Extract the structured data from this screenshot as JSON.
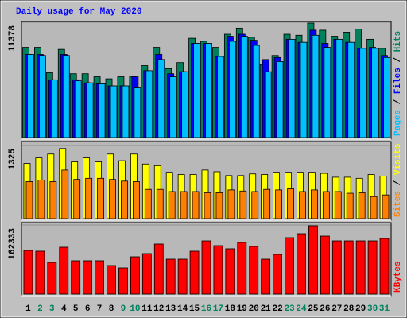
{
  "chart_data": {
    "type": "bar",
    "title": "Daily usage for May 2020",
    "categories": [
      "1",
      "2",
      "3",
      "4",
      "5",
      "6",
      "7",
      "8",
      "9",
      "10",
      "11",
      "12",
      "13",
      "14",
      "15",
      "16",
      "17",
      "18",
      "19",
      "20",
      "21",
      "22",
      "23",
      "24",
      "25",
      "26",
      "27",
      "28",
      "29",
      "30",
      "31"
    ],
    "category_colors": [
      "#000000",
      "#00805c",
      "#00805c",
      "#000000",
      "#000000",
      "#000000",
      "#000000",
      "#000000",
      "#00805c",
      "#00805c",
      "#000000",
      "#000000",
      "#000000",
      "#000000",
      "#000000",
      "#00805c",
      "#00805c",
      "#000000",
      "#000000",
      "#000000",
      "#000000",
      "#000000",
      "#00805c",
      "#00805c",
      "#000000",
      "#000000",
      "#000000",
      "#000000",
      "#000000",
      "#00805c",
      "#00805c"
    ],
    "legend_separator": " / ",
    "panels": [
      {
        "ylim": [
          0,
          11378
        ],
        "yticks": [
          11378
        ],
        "series": [
          {
            "name": "Hits",
            "color": "#00805c",
            "values": [
              8900,
              8900,
              6400,
              8700,
              6300,
              6300,
              6000,
              5800,
              6000,
              6000,
              7100,
              8900,
              6800,
              7400,
              9800,
              9500,
              8900,
              10200,
              10800,
              9900,
              7200,
              8100,
              10200,
              10100,
              11300,
              10600,
              10000,
              10400,
              10700,
              9700,
              8800
            ]
          },
          {
            "name": "Files",
            "color": "#0000ff",
            "values": [
              8200,
              8200,
              5700,
              8200,
              5700,
              5400,
              5300,
              5100,
              5100,
              6000,
              6600,
              8200,
              6300,
              6500,
              9300,
              9300,
              8000,
              10000,
              10200,
              9600,
              7700,
              7900,
              9700,
              9400,
              10600,
              9300,
              9700,
              9400,
              8800,
              8900,
              8100
            ]
          },
          {
            "name": "Pages",
            "color": "#00c0ff",
            "values": [
              8200,
              8100,
              5700,
              8100,
              5600,
              5400,
              5300,
              5100,
              5100,
              4900,
              6600,
              7700,
              6000,
              6500,
              9300,
              9300,
              8000,
              9500,
              10000,
              9100,
              6500,
              7500,
              9700,
              9400,
              10100,
              8900,
              9700,
              9400,
              8800,
              8800,
              7900
            ]
          }
        ]
      },
      {
        "ylim": [
          0,
          1325
        ],
        "yticks": [
          1325
        ],
        "series": [
          {
            "name": "Visits",
            "color": "#ffff00",
            "values": [
              1000,
              1100,
              1170,
              1270,
              1030,
              1100,
              1030,
              1170,
              1050,
              1170,
              990,
              960,
              840,
              800,
              800,
              880,
              850,
              780,
              780,
              810,
              800,
              840,
              840,
              840,
              840,
              820,
              750,
              750,
              730,
              800,
              770
            ]
          },
          {
            "name": "Sites",
            "color": "#ff8000",
            "values": [
              670,
              700,
              670,
              880,
              710,
              730,
              730,
              710,
              680,
              670,
              530,
              530,
              490,
              490,
              490,
              470,
              470,
              520,
              500,
              490,
              530,
              520,
              540,
              490,
              520,
              490,
              490,
              460,
              470,
              400,
              430
            ]
          }
        ]
      },
      {
        "ylim": [
          0,
          162333
        ],
        "yticks": [
          162333
        ],
        "series": [
          {
            "name": "KBytes",
            "color": "#ff0000",
            "values": [
              102600,
              100800,
              74600,
              110100,
              78400,
              78400,
              78400,
              67200,
              61600,
              87700,
              95200,
              117600,
              82100,
              82100,
              100800,
              125000,
              113800,
              106400,
              121300,
              112000,
              82100,
              93300,
              132500,
              141800,
              160500,
              136200,
              125000,
              125000,
              125000,
              125000,
              130600
            ]
          }
        ]
      }
    ]
  }
}
